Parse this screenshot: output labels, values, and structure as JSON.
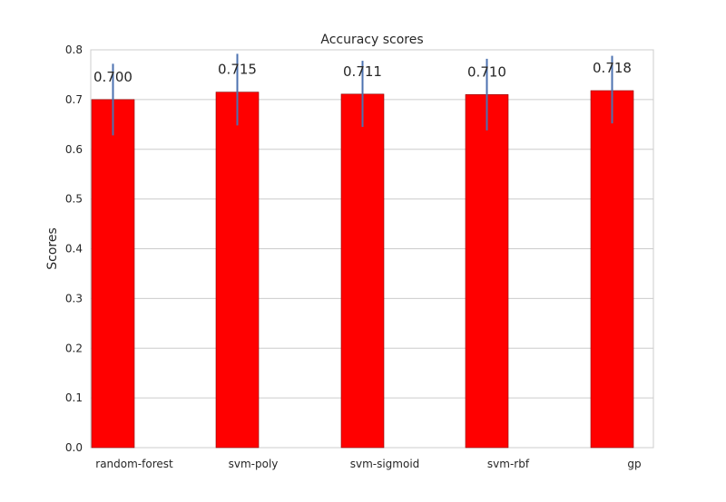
{
  "chart_data": {
    "type": "bar",
    "title": "Accuracy scores",
    "xlabel": "",
    "ylabel": "Scores",
    "categories": [
      "random-forest",
      "svm-poly",
      "svm-sigmoid",
      "svm-rbf",
      "gp"
    ],
    "values": [
      0.7,
      0.715,
      0.711,
      0.71,
      0.718
    ],
    "data_labels": [
      "0.700",
      "0.715",
      "0.711",
      "0.710",
      "0.718"
    ],
    "error_bars": [
      {
        "low": 0.628,
        "high": 0.772
      },
      {
        "low": 0.648,
        "high": 0.792
      },
      {
        "low": 0.645,
        "high": 0.778
      },
      {
        "low": 0.638,
        "high": 0.782
      },
      {
        "low": 0.652,
        "high": 0.788
      }
    ],
    "ylim": [
      0,
      0.8
    ],
    "yticks": [
      "0.0",
      "0.1",
      "0.2",
      "0.3",
      "0.4",
      "0.5",
      "0.6",
      "0.7",
      "0.8"
    ],
    "grid": true,
    "legend": "none",
    "colors": {
      "bar": "#ff0000",
      "bar_edge": "#8b0000",
      "error_bar": "#4c72b0",
      "grid": "#cccccc",
      "frame": "#cccccc"
    }
  }
}
